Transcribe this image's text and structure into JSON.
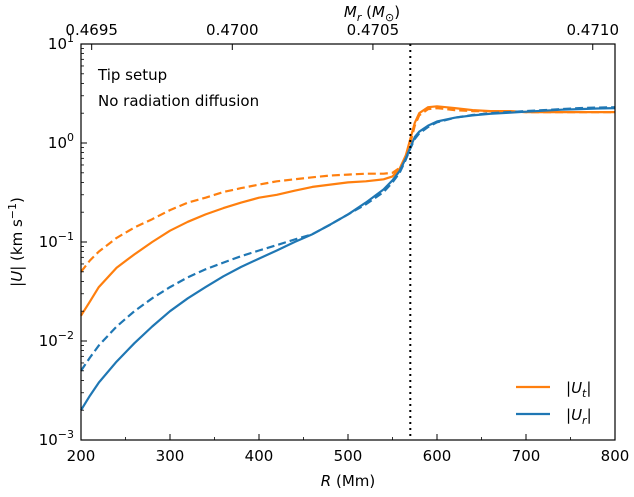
{
  "chart_data": {
    "type": "line",
    "xlabel": "R (Mm)",
    "ylabel": "|U| (km s⁻¹)",
    "top_xlabel": "M_r (M_⊙)",
    "xlim": [
      200,
      800
    ],
    "ylim": [
      0.001,
      10
    ],
    "yscale": "log",
    "x_ticks": [
      "200",
      "300",
      "400",
      "500",
      "600",
      "700",
      "800"
    ],
    "y_ticks": [
      {
        "base": "10",
        "exp": "−3"
      },
      {
        "base": "10",
        "exp": "−2"
      },
      {
        "base": "10",
        "exp": "−1"
      },
      {
        "base": "10",
        "exp": "0"
      },
      {
        "base": "10",
        "exp": "1"
      }
    ],
    "top_ticks": [
      {
        "label": "0.4695",
        "x": 212
      },
      {
        "label": "0.4700",
        "x": 370
      },
      {
        "label": "0.4705",
        "x": 528
      },
      {
        "label": "0.4710",
        "x": 775
      }
    ],
    "annotations": [
      "Tip setup",
      "No radiation diffusion"
    ],
    "vline_x": 570,
    "legend": {
      "position": "lower-right",
      "entries": [
        "|U_t|",
        "|U_r|"
      ]
    },
    "colors": {
      "orange": "#ff7f0e",
      "blue": "#1f77b4"
    },
    "series": [
      {
        "name": "|U_t|",
        "color": "#ff7f0e",
        "style": "solid",
        "x": [
          200,
          210,
          220,
          240,
          260,
          280,
          300,
          320,
          340,
          360,
          380,
          400,
          420,
          440,
          460,
          480,
          500,
          520,
          540,
          550,
          558,
          565,
          570,
          575,
          580,
          590,
          600,
          610,
          620,
          640,
          660,
          680,
          700,
          720,
          740,
          760,
          780,
          800
        ],
        "y": [
          0.018,
          0.025,
          0.035,
          0.055,
          0.075,
          0.1,
          0.13,
          0.16,
          0.19,
          0.22,
          0.25,
          0.28,
          0.3,
          0.33,
          0.36,
          0.38,
          0.4,
          0.41,
          0.43,
          0.46,
          0.55,
          0.75,
          1.1,
          1.6,
          2.0,
          2.3,
          2.35,
          2.3,
          2.25,
          2.15,
          2.1,
          2.1,
          2.05,
          2.05,
          2.05,
          2.05,
          2.05,
          2.05
        ]
      },
      {
        "name": "|U_t| dashed",
        "color": "#ff7f0e",
        "style": "dashed",
        "x": [
          200,
          210,
          220,
          240,
          260,
          280,
          300,
          320,
          340,
          360,
          380,
          400,
          420,
          440,
          460,
          480,
          500,
          520,
          540,
          550,
          558,
          565,
          570,
          575,
          580,
          590,
          600,
          610,
          620,
          640,
          660,
          680,
          700,
          720,
          740,
          760,
          780,
          800
        ],
        "y": [
          0.05,
          0.065,
          0.08,
          0.11,
          0.14,
          0.17,
          0.21,
          0.25,
          0.28,
          0.32,
          0.35,
          0.38,
          0.41,
          0.43,
          0.45,
          0.47,
          0.48,
          0.49,
          0.49,
          0.5,
          0.56,
          0.7,
          1.0,
          1.5,
          1.9,
          2.2,
          2.25,
          2.2,
          2.15,
          2.1,
          2.1,
          2.1,
          2.05,
          2.05,
          2.05,
          2.05,
          2.05,
          2.05
        ]
      },
      {
        "name": "|U_r|",
        "color": "#1f77b4",
        "style": "solid",
        "x": [
          200,
          210,
          220,
          240,
          260,
          280,
          300,
          320,
          340,
          360,
          380,
          400,
          420,
          440,
          460,
          480,
          500,
          520,
          540,
          550,
          558,
          565,
          570,
          575,
          580,
          590,
          600,
          620,
          640,
          660,
          680,
          700,
          720,
          740,
          760,
          780,
          800
        ],
        "y": [
          0.002,
          0.0028,
          0.0038,
          0.0062,
          0.0095,
          0.014,
          0.02,
          0.027,
          0.035,
          0.045,
          0.056,
          0.068,
          0.082,
          0.1,
          0.12,
          0.15,
          0.19,
          0.25,
          0.34,
          0.42,
          0.52,
          0.7,
          0.9,
          1.15,
          1.3,
          1.5,
          1.65,
          1.8,
          1.9,
          1.97,
          2.02,
          2.07,
          2.12,
          2.17,
          2.2,
          2.23,
          2.25
        ]
      },
      {
        "name": "|U_r| dashed",
        "color": "#1f77b4",
        "style": "dashed",
        "x": [
          200,
          210,
          220,
          240,
          260,
          280,
          300,
          320,
          340,
          360,
          380,
          400,
          420,
          440,
          460,
          480,
          500,
          520,
          540,
          550,
          558,
          565,
          570,
          575,
          580,
          590,
          600,
          620,
          640,
          660,
          680,
          700,
          720,
          740,
          760,
          780,
          800
        ],
        "y": [
          0.005,
          0.0068,
          0.009,
          0.014,
          0.02,
          0.027,
          0.035,
          0.044,
          0.053,
          0.062,
          0.072,
          0.082,
          0.093,
          0.106,
          0.12,
          0.15,
          0.19,
          0.24,
          0.32,
          0.4,
          0.5,
          0.68,
          0.88,
          1.1,
          1.25,
          1.45,
          1.62,
          1.8,
          1.92,
          2.0,
          2.05,
          2.1,
          2.15,
          2.2,
          2.25,
          2.28,
          2.3
        ]
      }
    ]
  }
}
